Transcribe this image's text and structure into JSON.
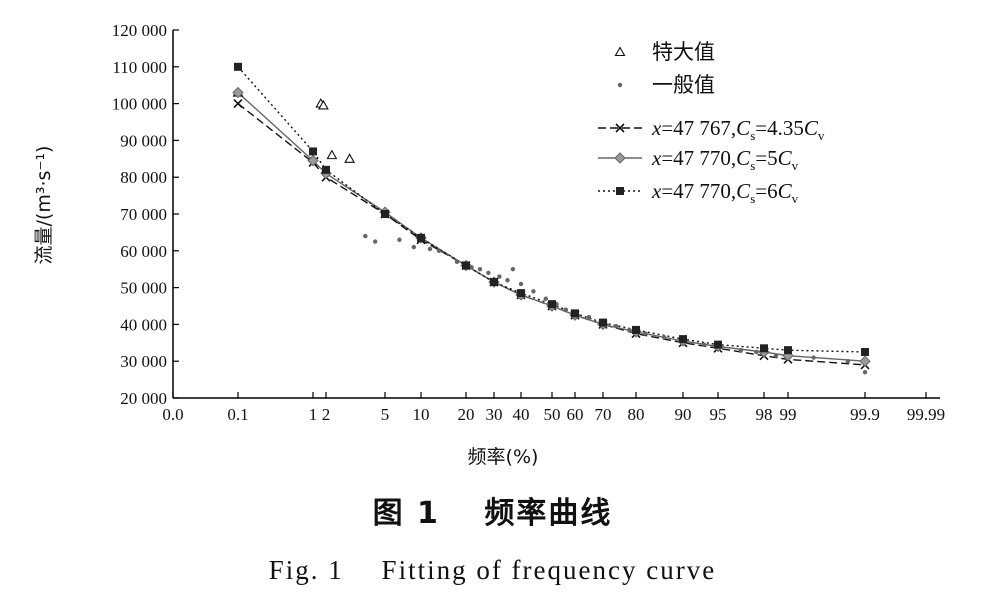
{
  "chart_data": {
    "type": "scatter",
    "xlabel": "频率(%)",
    "ylabel": "流量/(m³·s⁻¹)",
    "x_ticks": [
      "0.0",
      "0.1",
      "1",
      "2",
      "5",
      "10",
      "20",
      "30",
      "40",
      "50",
      "60",
      "70",
      "80",
      "90",
      "95",
      "98",
      "99",
      "99.9",
      "99.99"
    ],
    "y_ticks": [
      "120 000",
      "110 000",
      "100 000",
      "90 000",
      "80 000",
      "70 000",
      "60 000",
      "50 000",
      "40 000",
      "30 000",
      "20 000"
    ],
    "ylim": [
      20000,
      120000
    ],
    "legend_position": "top-right",
    "series": [
      {
        "name": "特大值",
        "marker": "triangle-open",
        "points": [
          [
            0.1,
            103000
          ],
          [
            1.6,
            100000
          ],
          [
            1.8,
            99500
          ],
          [
            2.3,
            86000
          ],
          [
            3.2,
            85000
          ]
        ]
      },
      {
        "name": "一般值",
        "marker": "dot",
        "points": [
          [
            4,
            64000
          ],
          [
            4.5,
            62500
          ],
          [
            7,
            63000
          ],
          [
            9,
            61000
          ],
          [
            12,
            60500
          ],
          [
            14,
            60000
          ],
          [
            18,
            57000
          ],
          [
            22,
            55500
          ],
          [
            25,
            55000
          ],
          [
            28,
            54000
          ],
          [
            32,
            53000
          ],
          [
            35,
            52000
          ],
          [
            37,
            55000
          ],
          [
            40,
            51000
          ],
          [
            44,
            49000
          ],
          [
            48,
            47000
          ],
          [
            52,
            45500
          ],
          [
            56,
            44000
          ],
          [
            60,
            43000
          ],
          [
            65,
            42000
          ],
          [
            70,
            40500
          ],
          [
            74,
            39500
          ],
          [
            78,
            38500
          ],
          [
            82,
            37500
          ],
          [
            86,
            36500
          ],
          [
            90,
            35500
          ],
          [
            93,
            34500
          ],
          [
            95,
            34000
          ],
          [
            96.5,
            33000
          ],
          [
            97.5,
            32500
          ],
          [
            98.5,
            31500
          ],
          [
            99.3,
            31000
          ],
          [
            99.7,
            30000
          ],
          [
            99.9,
            27000
          ]
        ]
      },
      {
        "name_prefix": "x=47 767,",
        "name_cs": "C",
        "name_cs_sub": "s",
        "name_eq": "=4.35",
        "name_cv": "C",
        "name_cv_sub": "v",
        "marker": "x",
        "dash": "8,4",
        "points": [
          [
            0.1,
            100000
          ],
          [
            1,
            84000
          ],
          [
            2,
            80000
          ],
          [
            5,
            70000
          ],
          [
            10,
            63000
          ],
          [
            20,
            56000
          ],
          [
            30,
            51500
          ],
          [
            40,
            48000
          ],
          [
            50,
            45000
          ],
          [
            60,
            42500
          ],
          [
            70,
            40000
          ],
          [
            80,
            37500
          ],
          [
            90,
            35000
          ],
          [
            95,
            33500
          ],
          [
            98,
            31500
          ],
          [
            99,
            30500
          ],
          [
            99.9,
            29000
          ]
        ]
      },
      {
        "name_prefix": "x=47 770,",
        "name_cs": "C",
        "name_cs_sub": "s",
        "name_eq": "=5",
        "name_cv": "C",
        "name_cv_sub": "v",
        "marker": "diamond",
        "dash": "",
        "points": [
          [
            0.1,
            103000
          ],
          [
            1,
            84500
          ],
          [
            2,
            81000
          ],
          [
            5,
            70500
          ],
          [
            10,
            63500
          ],
          [
            20,
            56000
          ],
          [
            30,
            51500
          ],
          [
            40,
            48000
          ],
          [
            50,
            45000
          ],
          [
            60,
            42500
          ],
          [
            70,
            40000
          ],
          [
            80,
            38000
          ],
          [
            90,
            35500
          ],
          [
            95,
            34000
          ],
          [
            98,
            32500
          ],
          [
            99,
            31500
          ],
          [
            99.9,
            30000
          ]
        ]
      },
      {
        "name_prefix": "x=47 770,",
        "name_cs": "C",
        "name_cs_sub": "s",
        "name_eq": "=6",
        "name_cv": "C",
        "name_cv_sub": "v",
        "marker": "square",
        "dash": "2,3",
        "points": [
          [
            0.1,
            110000
          ],
          [
            1,
            87000
          ],
          [
            2,
            82000
          ],
          [
            5,
            70000
          ],
          [
            10,
            63500
          ],
          [
            20,
            56000
          ],
          [
            30,
            51500
          ],
          [
            40,
            48500
          ],
          [
            50,
            45500
          ],
          [
            60,
            43000
          ],
          [
            70,
            40500
          ],
          [
            80,
            38500
          ],
          [
            90,
            36000
          ],
          [
            95,
            34500
          ],
          [
            98,
            33500
          ],
          [
            99,
            33000
          ],
          [
            99.9,
            32500
          ]
        ]
      }
    ]
  },
  "caption": {
    "cn": "图 1　 频率曲线",
    "en": "Fig. 1　 Fitting of frequency curve"
  },
  "colors": {
    "axis": "#000000",
    "series_dark": "#111111",
    "series_gray": "#666666",
    "series_light": "#999999"
  }
}
